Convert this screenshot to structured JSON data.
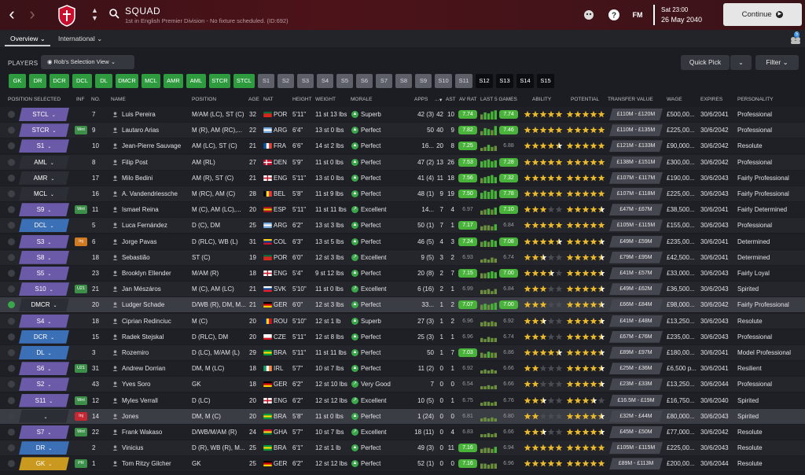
{
  "header": {
    "title": "SQUAD",
    "subtitle": "1st in English Premier Division - No fixture scheduled. (ID:692)",
    "time": "Sat 23:00",
    "date": "26 May 2040",
    "continue_label": "Continue",
    "fm_label": "FM"
  },
  "tabs": {
    "overview": "Overview",
    "international": "International",
    "notif_count": "5"
  },
  "filters": {
    "players_label": "PLAYERS",
    "selection_view": "Rob's Selection View",
    "quick_pick": "Quick Pick",
    "filter": "Filter"
  },
  "position_chips": [
    {
      "label": "GK",
      "style": "green"
    },
    {
      "label": "DR",
      "style": "green"
    },
    {
      "label": "DCR",
      "style": "green"
    },
    {
      "label": "DCL",
      "style": "green"
    },
    {
      "label": "DL",
      "style": "green"
    },
    {
      "label": "DMCR",
      "style": "green"
    },
    {
      "label": "MCL",
      "style": "green"
    },
    {
      "label": "AMR",
      "style": "green"
    },
    {
      "label": "AML",
      "style": "green"
    },
    {
      "label": "STCR",
      "style": "green"
    },
    {
      "label": "STCL",
      "style": "green"
    },
    {
      "label": "S1",
      "style": "grey"
    },
    {
      "label": "S2",
      "style": "grey"
    },
    {
      "label": "S3",
      "style": "grey"
    },
    {
      "label": "S4",
      "style": "grey"
    },
    {
      "label": "S5",
      "style": "grey"
    },
    {
      "label": "S6",
      "style": "grey"
    },
    {
      "label": "S7",
      "style": "grey"
    },
    {
      "label": "S8",
      "style": "grey"
    },
    {
      "label": "S9",
      "style": "grey"
    },
    {
      "label": "S10",
      "style": "grey"
    },
    {
      "label": "S11",
      "style": "grey"
    },
    {
      "label": "S12",
      "style": "dark"
    },
    {
      "label": "S13",
      "style": "dark"
    },
    {
      "label": "S14",
      "style": "dark"
    },
    {
      "label": "S15",
      "style": "dark"
    }
  ],
  "columns": {
    "position_selected": "POSITION SELECTED",
    "inf": "INF",
    "no": "NO.",
    "name": "NAME",
    "position": "POSITION",
    "age": "AGE",
    "nat": "NAT",
    "height": "HEIGHT",
    "weight": "WEIGHT",
    "morale": "MORALE",
    "apps": "APPS",
    "gls": "...",
    "ast": "AST",
    "av_rat": "AV RAT",
    "last5": "LAST 5 GAMES",
    "ability": "ABILITY",
    "potential": "POTENTIAL",
    "transfer_value": "TRANSFER VALUE",
    "wage": "WAGE",
    "expires": "EXPIRES",
    "personality": "PERSONALITY"
  },
  "colors": {
    "pill_purple": "#6a5aa8",
    "pill_blue": "#3b6fb6",
    "pill_dark": "#2c2e35",
    "green": "#48b23a",
    "gold": "#e9b82a"
  },
  "rows": [
    {
      "sel": "STCL",
      "pc": "purple",
      "inf": "",
      "no": "7",
      "name": "Luis Pereira",
      "pos": "M/AM (LC), ST (C)",
      "age": "32",
      "nat": "POR",
      "flag": "por",
      "h": "5'11\"",
      "w": "11 st 13 lbs",
      "mor": "Superb",
      "mc": "sup",
      "apps": "42 (3)",
      "gls": "42",
      "ast": "10",
      "av": "7.74",
      "avg": true,
      "l5": "7.74",
      "l5g": true,
      "bars": [
        5,
        7,
        6,
        8,
        9
      ],
      "ab": 5,
      "pot": 5,
      "tv": "£110M - £120M",
      "wage": "£500,00...",
      "exp": "30/6/2041",
      "pers": "Professional"
    },
    {
      "sel": "STCR",
      "pc": "purple",
      "inf": "Wnt",
      "ic": "g",
      "no": "9",
      "name": "Lautaro Arias",
      "pos": "M (R), AM (RC),...",
      "age": "22",
      "nat": "ARG",
      "flag": "arg",
      "h": "6'4\"",
      "w": "13 st 0 lbs",
      "mor": "Perfect",
      "mc": "per",
      "apps": "50",
      "gls": "40",
      "ast": "9",
      "av": "7.82",
      "avg": true,
      "l5": "7.46",
      "l5g": true,
      "bars": [
        4,
        7,
        6,
        5,
        9
      ],
      "ab": 5,
      "pot": 5,
      "tv": "£110M - £135M",
      "wage": "£225,00...",
      "exp": "30/6/2042",
      "pers": "Professional"
    },
    {
      "sel": "S1",
      "pc": "purple",
      "inf": "",
      "no": "10",
      "name": "Jean-Pierre Sauvage",
      "pos": "AM (LC), ST (C)",
      "age": "21",
      "nat": "FRA",
      "flag": "fra",
      "h": "6'6\"",
      "w": "14 st 2 lbs",
      "mor": "Perfect",
      "mc": "per",
      "apps": "16...",
      "gls": "20",
      "ast": "8",
      "av": "7.25",
      "avg": true,
      "l5": "6.88",
      "l5g": false,
      "bars": [
        3,
        4,
        6,
        4,
        5
      ],
      "ab": 4.5,
      "pot": 5,
      "tv": "£121M - £133M",
      "wage": "£90,000...",
      "exp": "30/6/2042",
      "pers": "Resolute"
    },
    {
      "sel": "AML",
      "pc": "dark",
      "inf": "",
      "no": "8",
      "name": "Filip Post",
      "pos": "AM (RL)",
      "age": "27",
      "nat": "DEN",
      "flag": "den",
      "h": "5'9\"",
      "w": "11 st 0 lbs",
      "mor": "Perfect",
      "mc": "per",
      "apps": "47 (2)",
      "gls": "13",
      "ast": "26",
      "av": "7.53",
      "avg": true,
      "l5": "7.28",
      "l5g": true,
      "bars": [
        6,
        7,
        8,
        6,
        7
      ],
      "ab": 5,
      "pot": 5,
      "tv": "£138M - £151M",
      "wage": "£300,00...",
      "exp": "30/6/2042",
      "pers": "Professional"
    },
    {
      "sel": "AMR",
      "pc": "dark",
      "inf": "",
      "no": "17",
      "name": "Milo Bedini",
      "pos": "AM (R), ST (C)",
      "age": "21",
      "nat": "ENG",
      "flag": "eng",
      "h": "5'11\"",
      "w": "13 st 0 lbs",
      "mor": "Perfect",
      "mc": "per",
      "apps": "41 (4)",
      "gls": "11",
      "ast": "18",
      "av": "7.56",
      "avg": true,
      "l5": "7.32",
      "l5g": true,
      "bars": [
        5,
        6,
        7,
        8,
        6
      ],
      "ab": 5,
      "pot": 5,
      "tv": "£107M - £117M",
      "wage": "£190,00...",
      "exp": "30/6/2043",
      "pers": "Fairly Professional"
    },
    {
      "sel": "MCL",
      "pc": "dark",
      "inf": "",
      "no": "16",
      "name": "A. Vandendriessche",
      "pos": "M (RC), AM (C)",
      "age": "28",
      "nat": "BEL",
      "flag": "bel",
      "h": "5'8\"",
      "w": "11 st 9 lbs",
      "mor": "Perfect",
      "mc": "per",
      "apps": "48 (1)",
      "gls": "9",
      "ast": "19",
      "av": "7.50",
      "avg": true,
      "l5": "7.78",
      "l5g": true,
      "bars": [
        6,
        8,
        7,
        9,
        8
      ],
      "ab": 5,
      "pot": 5,
      "tv": "£107M - £118M",
      "wage": "£225,00...",
      "exp": "30/6/2043",
      "pers": "Fairly Professional"
    },
    {
      "sel": "S9",
      "pc": "purple",
      "inf": "Wnt",
      "ic": "g",
      "no": "11",
      "name": "Ismael Reina",
      "pos": "M (C), AM (LC),...",
      "age": "20",
      "nat": "ESP",
      "flag": "esp",
      "h": "5'11\"",
      "w": "11 st 11 lbs",
      "mor": "Excellent",
      "mc": "exc",
      "apps": "14...",
      "gls": "7",
      "ast": "4",
      "av": "6.97",
      "avg": false,
      "l5": "7.10",
      "l5g": true,
      "bars": [
        4,
        5,
        6,
        5,
        7
      ],
      "ab": 3,
      "pot": 4.5,
      "tv": "£47M - £67M",
      "wage": "£38,500...",
      "exp": "30/6/2041",
      "pers": "Fairly Determined"
    },
    {
      "sel": "DCL",
      "pc": "blue",
      "inf": "",
      "no": "5",
      "name": "Luca Fernández",
      "pos": "D (C), DM",
      "age": "25",
      "nat": "ARG",
      "flag": "arg",
      "h": "6'2\"",
      "w": "13 st 3 lbs",
      "mor": "Perfect",
      "mc": "per",
      "apps": "50 (1)",
      "gls": "7",
      "ast": "1",
      "av": "7.17",
      "avg": true,
      "l5": "6.84",
      "l5g": false,
      "bars": [
        4,
        5,
        5,
        4,
        6
      ],
      "ab": 5,
      "pot": 5,
      "tv": "£105M - £115M",
      "wage": "£155,00...",
      "exp": "30/6/2043",
      "pers": "Professional"
    },
    {
      "sel": "S3",
      "pc": "purple",
      "inf": "Inj",
      "ic": "o",
      "no": "6",
      "name": "Jorge Pavas",
      "pos": "D (RLC), WB (L)",
      "age": "31",
      "nat": "COL",
      "flag": "col",
      "h": "6'3\"",
      "w": "13 st 5 lbs",
      "mor": "Perfect",
      "mc": "per",
      "apps": "46 (5)",
      "gls": "4",
      "ast": "3",
      "av": "7.24",
      "avg": true,
      "l5": "7.08",
      "l5g": true,
      "bars": [
        5,
        6,
        5,
        7,
        6
      ],
      "ab": 4.5,
      "pot": 4.5,
      "tv": "£49M - £59M",
      "wage": "£235,00...",
      "exp": "30/6/2041",
      "pers": "Determined"
    },
    {
      "sel": "S8",
      "pc": "purple",
      "inf": "",
      "no": "18",
      "name": "Sebastião",
      "pos": "ST (C)",
      "age": "19",
      "nat": "POR",
      "flag": "por",
      "h": "6'0\"",
      "w": "12 st 3 lbs",
      "mor": "Excellent",
      "mc": "exc",
      "apps": "9 (5)",
      "gls": "3",
      "ast": "2",
      "av": "6.93",
      "avg": false,
      "l5": "6.74",
      "l5g": false,
      "bars": [
        3,
        4,
        3,
        5,
        4
      ],
      "ab": 2.5,
      "pot": 4.5,
      "tv": "£79M - £95M",
      "wage": "£42,500...",
      "exp": "30/6/2041",
      "pers": "Determined"
    },
    {
      "sel": "S5",
      "pc": "purple",
      "inf": "",
      "no": "23",
      "name": "Brooklyn Ellender",
      "pos": "M/AM (R)",
      "age": "18",
      "nat": "ENG",
      "flag": "eng",
      "h": "5'4\"",
      "w": "9 st 12 lbs",
      "mor": "Perfect",
      "mc": "per",
      "apps": "20 (8)",
      "gls": "2",
      "ast": "7",
      "av": "7.15",
      "avg": true,
      "l5": "7.00",
      "l5g": true,
      "bars": [
        5,
        5,
        6,
        7,
        6
      ],
      "ab": 3.5,
      "pot": 4.5,
      "tv": "£41M - £57M",
      "wage": "£33,000...",
      "exp": "30/6/2043",
      "pers": "Fairly Loyal"
    },
    {
      "sel": "S10",
      "pc": "purple",
      "inf": "U21",
      "ic": "g",
      "no": "21",
      "name": "Jan Mészáros",
      "pos": "M (C), AM (LC)",
      "age": "21",
      "nat": "SVK",
      "flag": "svk",
      "h": "5'10\"",
      "w": "11 st 0 lbs",
      "mor": "Excellent",
      "mc": "exc",
      "apps": "6 (16)",
      "gls": "2",
      "ast": "1",
      "av": "6.99",
      "avg": false,
      "l5": "6.84",
      "l5g": false,
      "bars": [
        4,
        4,
        5,
        3,
        5
      ],
      "ab": 3,
      "pot": 4.5,
      "tv": "£49M - £62M",
      "wage": "£36,500...",
      "exp": "30/6/2043",
      "pers": "Spirited"
    },
    {
      "sel": "DMCR",
      "pc": "dark",
      "inf": "",
      "no": "20",
      "name": "Ludger Schade",
      "pos": "D/WB (R), DM, M...",
      "age": "21",
      "nat": "GER",
      "flag": "ger",
      "h": "6'0\"",
      "w": "12 st 3 lbs",
      "mor": "Perfect",
      "mc": "per",
      "apps": "33...",
      "gls": "1",
      "ast": "2",
      "av": "7.07",
      "avg": true,
      "l5": "7.00",
      "l5g": true,
      "bars": [
        5,
        6,
        5,
        6,
        7
      ],
      "ab": 3,
      "pot": 4.5,
      "tv": "£66M - £84M",
      "wage": "£98,000...",
      "exp": "30/6/2042",
      "pers": "Fairly Professional",
      "hl": true,
      "chk": true
    },
    {
      "sel": "S4",
      "pc": "purple",
      "inf": "",
      "no": "18",
      "name": "Ciprian Redinciuc",
      "pos": "M (C)",
      "age": "20",
      "nat": "ROU",
      "flag": "rou",
      "h": "5'10\"",
      "w": "12 st 1 lb",
      "mor": "Superb",
      "mc": "sup",
      "apps": "27 (3)",
      "gls": "1",
      "ast": "2",
      "av": "6.96",
      "avg": false,
      "l5": "6.92",
      "l5g": false,
      "bars": [
        4,
        5,
        4,
        5,
        4
      ],
      "ab": 2.5,
      "pot": 4.5,
      "tv": "£41M - £48M",
      "wage": "£13,250...",
      "exp": "30/6/2043",
      "pers": "Resolute"
    },
    {
      "sel": "DCR",
      "pc": "blue",
      "inf": "",
      "no": "15",
      "name": "Radek Stejskal",
      "pos": "D (RLC), DM",
      "age": "20",
      "nat": "CZE",
      "flag": "cze",
      "h": "5'11\"",
      "w": "12 st 8 lbs",
      "mor": "Perfect",
      "mc": "per",
      "apps": "25 (3)",
      "gls": "1",
      "ast": "1",
      "av": "6.96",
      "avg": false,
      "l5": "6.74",
      "l5g": false,
      "bars": [
        4,
        3,
        5,
        4,
        4
      ],
      "ab": 3,
      "pot": 4.5,
      "tv": "£67M - £76M",
      "wage": "£235,00...",
      "exp": "30/6/2043",
      "pers": "Professional"
    },
    {
      "sel": "DL",
      "pc": "blue",
      "inf": "",
      "no": "3",
      "name": "Rozemiro",
      "pos": "D (LC), M/AM (L)",
      "age": "29",
      "nat": "BRA",
      "flag": "bra",
      "h": "5'11\"",
      "w": "11 st 11 lbs",
      "mor": "Perfect",
      "mc": "per",
      "apps": "50",
      "gls": "1",
      "ast": "7",
      "av": "7.03",
      "avg": true,
      "l5": "6.86",
      "l5g": false,
      "bars": [
        5,
        4,
        6,
        5,
        5
      ],
      "ab": 4.5,
      "pot": 4.5,
      "tv": "£89M - £97M",
      "wage": "£180,00...",
      "exp": "30/6/2041",
      "pers": "Model Professional"
    },
    {
      "sel": "S6",
      "pc": "purple",
      "inf": "U21",
      "ic": "g",
      "no": "31",
      "name": "Andrew Dorrian",
      "pos": "DM, M (LC)",
      "age": "18",
      "nat": "IRL",
      "flag": "irl",
      "h": "5'7\"",
      "w": "10 st 7 lbs",
      "mor": "Perfect",
      "mc": "per",
      "apps": "11 (2)",
      "gls": "0",
      "ast": "1",
      "av": "6.92",
      "avg": false,
      "l5": "6.66",
      "l5g": false,
      "bars": [
        3,
        4,
        3,
        4,
        3
      ],
      "ab": 2,
      "pot": 4.5,
      "tv": "£25M - £36M",
      "wage": "£6,500 p...",
      "exp": "30/6/2041",
      "pers": "Resilient"
    },
    {
      "sel": "S2",
      "pc": "purple",
      "inf": "",
      "no": "43",
      "name": "Yves Soro",
      "pos": "GK",
      "age": "18",
      "nat": "GER",
      "flag": "ger",
      "h": "6'2\"",
      "w": "12 st 10 lbs",
      "mor": "Very Good",
      "mc": "vg",
      "apps": "7",
      "gls": "0",
      "ast": "0",
      "av": "6.54",
      "avg": false,
      "l5": "6.66",
      "l5g": false,
      "bars": [
        3,
        3,
        4,
        3,
        4
      ],
      "ab": 2,
      "pot": 4.5,
      "tv": "£23M - £33M",
      "wage": "£13,250...",
      "exp": "30/6/2044",
      "pers": "Professional"
    },
    {
      "sel": "S11",
      "pc": "purple",
      "inf": "Wnt",
      "ic": "g",
      "no": "12",
      "name": "Myles Verrall",
      "pos": "D (LC)",
      "age": "20",
      "nat": "ENG",
      "flag": "eng",
      "h": "6'2\"",
      "w": "12 st 12 lbs",
      "mor": "Excellent",
      "mc": "exc",
      "apps": "10 (5)",
      "gls": "0",
      "ast": "1",
      "av": "6.75",
      "avg": false,
      "l5": "6.76",
      "l5g": false,
      "bars": [
        3,
        4,
        4,
        3,
        4
      ],
      "ab": 2.5,
      "pot": 3.5,
      "tv": "£16.5M - £19M",
      "wage": "£16,750...",
      "exp": "30/6/2040",
      "pers": "Spirited"
    },
    {
      "sel": "",
      "pc": "dark",
      "inf": "Inj",
      "ic": "r",
      "no": "14",
      "name": "Jones",
      "pos": "DM, M (C)",
      "age": "20",
      "nat": "BRA",
      "flag": "bra",
      "h": "5'8\"",
      "w": "11 st 0 lbs",
      "mor": "Perfect",
      "mc": "per",
      "apps": "1 (24)",
      "gls": "0",
      "ast": "0",
      "av": "6.81",
      "avg": false,
      "l5": "6.80",
      "l5g": false,
      "bars": [
        3,
        4,
        3,
        4,
        3
      ],
      "ab": 2,
      "pot": 4.5,
      "tv": "£32M - £44M",
      "wage": "£80,000...",
      "exp": "30/6/2043",
      "pers": "Spirited",
      "hl": true
    },
    {
      "sel": "S7",
      "pc": "purple",
      "inf": "Wnt",
      "ic": "g",
      "no": "22",
      "name": "Frank Wakaso",
      "pos": "D/WB/M/AM (R)",
      "age": "24",
      "nat": "GHA",
      "flag": "gha",
      "h": "5'7\"",
      "w": "10 st 7 lbs",
      "mor": "Excellent",
      "mc": "exc",
      "apps": "18 (11)",
      "gls": "0",
      "ast": "4",
      "av": "6.83",
      "avg": false,
      "l5": "6.66",
      "l5g": false,
      "bars": [
        3,
        3,
        4,
        3,
        4
      ],
      "ab": 2.5,
      "pot": 4.5,
      "tv": "£45M - £50M",
      "wage": "£77,000...",
      "exp": "30/6/2042",
      "pers": "Resolute"
    },
    {
      "sel": "DR",
      "pc": "blue",
      "inf": "",
      "no": "2",
      "name": "Vinicius",
      "pos": "D (R), WB (R), M...",
      "age": "25",
      "nat": "BRA",
      "flag": "bra",
      "h": "6'1\"",
      "w": "12 st 1 lb",
      "mor": "Perfect",
      "mc": "per",
      "apps": "49 (3)",
      "gls": "0",
      "ast": "11",
      "av": "7.16",
      "avg": true,
      "l5": "6.94",
      "l5g": false,
      "bars": [
        4,
        5,
        5,
        4,
        6
      ],
      "ab": 5,
      "pot": 5,
      "tv": "£105M - £115M",
      "wage": "£225,00...",
      "exp": "30/6/2043",
      "pers": "Resolute"
    },
    {
      "sel": "GK",
      "pc": "gold",
      "inf": "PR",
      "ic": "g",
      "no": "1",
      "name": "Tom Ritzy Gilcher",
      "pos": "GK",
      "age": "25",
      "nat": "GER",
      "flag": "ger",
      "h": "6'2\"",
      "w": "12 st 12 lbs",
      "mor": "Perfect",
      "mc": "per",
      "apps": "52 (1)",
      "gls": "0",
      "ast": "0",
      "av": "7.16",
      "avg": true,
      "l5": "6.96",
      "l5g": false,
      "bars": [
        5,
        5,
        4,
        5,
        5
      ],
      "ab": 5,
      "pot": 5,
      "tv": "£89M - £113M",
      "wage": "£200,00...",
      "exp": "30/6/2044",
      "pers": "Resolute"
    }
  ]
}
